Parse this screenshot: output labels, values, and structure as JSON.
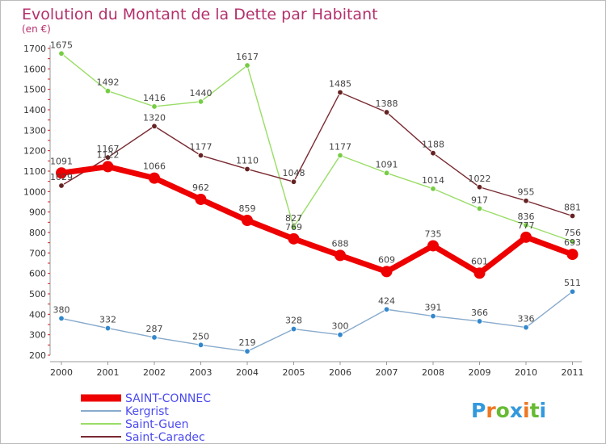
{
  "chart_data": {
    "type": "line",
    "title": "Evolution du Montant de la Dette par Habitant",
    "subtitle": "(en €)",
    "categories": [
      "2000",
      "2001",
      "2002",
      "2003",
      "2004",
      "2005",
      "2006",
      "2007",
      "2008",
      "2009",
      "2010",
      "2011"
    ],
    "ylim": [
      200,
      1700
    ],
    "yticks": [
      200,
      300,
      400,
      500,
      600,
      700,
      800,
      900,
      1000,
      1100,
      1200,
      1300,
      1400,
      1500,
      1600,
      1700
    ],
    "grid": false,
    "legend_position": "bottom-left",
    "series": [
      {
        "name": "Saint-Guen",
        "color": "#99dd66",
        "marker": "#77cc44",
        "values": [
          1675,
          1492,
          1416,
          1440,
          1617,
          827,
          1177,
          1091,
          1014,
          917,
          836,
          756
        ]
      },
      {
        "name": "Saint-Caradec",
        "color": "#7a2a32",
        "marker": "#662222",
        "values": [
          1029,
          1167,
          1320,
          1177,
          1110,
          1048,
          1485,
          1388,
          1188,
          1022,
          955,
          881
        ]
      },
      {
        "name": "Kergrist",
        "color": "#88aacc",
        "marker": "#3388cc",
        "values": [
          380,
          332,
          287,
          250,
          219,
          328,
          300,
          424,
          391,
          366,
          336,
          511
        ]
      },
      {
        "name": "SAINT-CONNEC",
        "color": "#ee0000",
        "marker": "#ee0000",
        "values": [
          1091,
          1122,
          1066,
          962,
          859,
          769,
          688,
          609,
          735,
          601,
          777,
          693
        ]
      }
    ],
    "legend_order": [
      "SAINT-CONNEC",
      "Kergrist",
      "Saint-Guen",
      "Saint-Caradec"
    ]
  },
  "logo": {
    "letters": [
      {
        "ch": "P",
        "color": "#3399dd"
      },
      {
        "ch": "r",
        "color": "#ee7722"
      },
      {
        "ch": "o",
        "color": "#66bb33"
      },
      {
        "ch": "x",
        "color": "#3399dd"
      },
      {
        "ch": "i",
        "color": "#ee7722"
      },
      {
        "ch": "t",
        "color": "#66bb33"
      },
      {
        "ch": "i",
        "color": "#3399dd"
      }
    ]
  }
}
